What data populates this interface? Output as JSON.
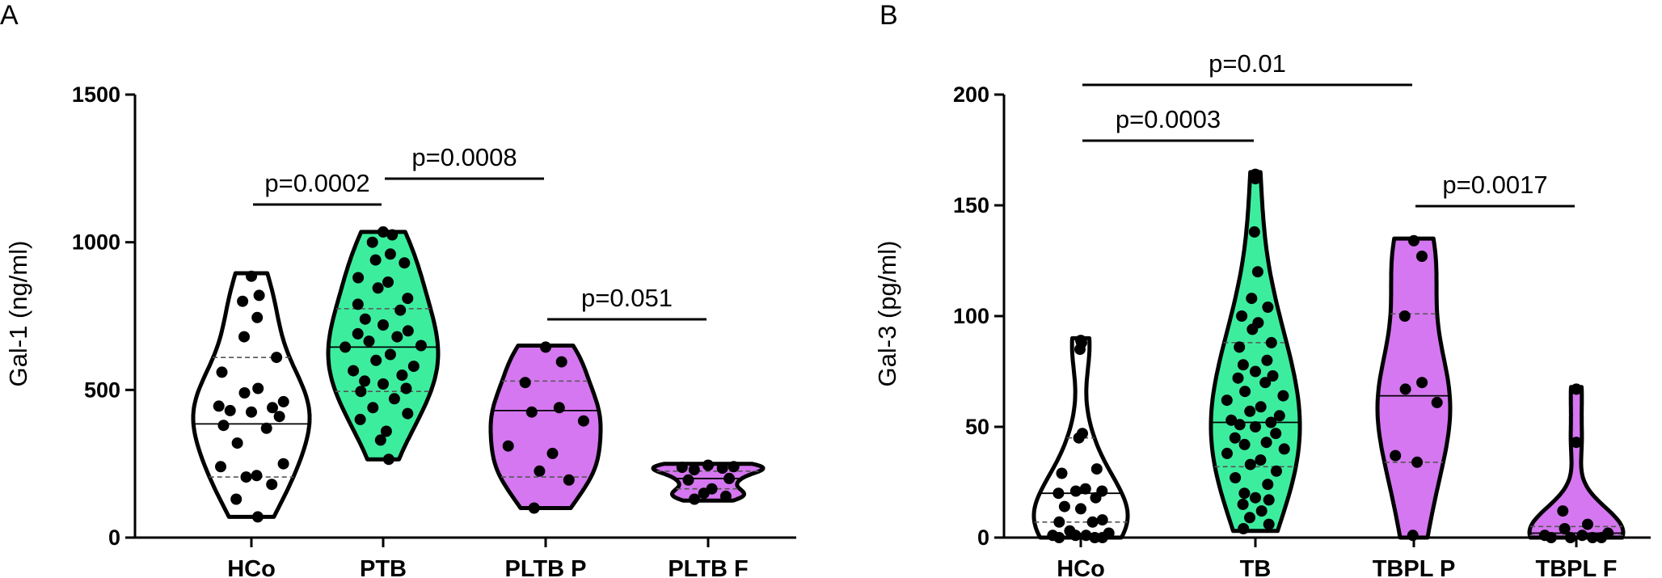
{
  "chart_data": [
    {
      "type": "violin",
      "panel_label": "A",
      "ylabel": "Gal-1 (ng/ml)",
      "ylim": [
        0,
        1500
      ],
      "yticks": [
        0,
        500,
        1000,
        1500
      ],
      "categories": [
        "HCo",
        "PTB",
        "PLTB P",
        "PLTB F"
      ],
      "series": [
        {
          "category": "HCo",
          "color": "#ffffff",
          "min": 70,
          "q1": 205,
          "median": 385,
          "q3": 610,
          "max": 895,
          "points": [
            885,
            820,
            800,
            745,
            680,
            610,
            560,
            505,
            490,
            460,
            445,
            440,
            430,
            425,
            410,
            380,
            370,
            320,
            250,
            240,
            210,
            205,
            180,
            130,
            70
          ]
        },
        {
          "category": "PTB",
          "color": "#3ded9e",
          "min": 265,
          "q1": 495,
          "median": 645,
          "q3": 775,
          "max": 1035,
          "points": [
            1035,
            1025,
            1000,
            960,
            940,
            930,
            880,
            865,
            845,
            810,
            790,
            770,
            740,
            720,
            700,
            690,
            680,
            665,
            650,
            645,
            620,
            600,
            580,
            565,
            550,
            530,
            520,
            505,
            495,
            470,
            440,
            420,
            400,
            360,
            330,
            265
          ]
        },
        {
          "category": "PLTB P",
          "color": "#d577f0",
          "min": 100,
          "q1": 205,
          "median": 430,
          "q3": 530,
          "max": 650,
          "points": [
            645,
            595,
            525,
            440,
            425,
            395,
            310,
            285,
            225,
            195,
            100
          ]
        },
        {
          "category": "PLTB F",
          "color": "#d577f0",
          "min": 125,
          "q1": 165,
          "median": 200,
          "q3": 225,
          "max": 250,
          "points": [
            245,
            240,
            238,
            235,
            230,
            200,
            195,
            165,
            150,
            140,
            130
          ]
        }
      ],
      "comparisons": [
        {
          "from": "HCo",
          "to": "PTB",
          "label": "p=0.0002"
        },
        {
          "from": "PTB",
          "to": "PLTB P",
          "label": "p=0.0008"
        },
        {
          "from": "PLTB P",
          "to": "PLTB F",
          "label": "p=0.051"
        }
      ]
    },
    {
      "type": "violin",
      "panel_label": "B",
      "ylabel": "Gal-3 (pg/ml)",
      "ylim": [
        0,
        200
      ],
      "yticks": [
        0,
        50,
        100,
        150,
        200
      ],
      "categories": [
        "HCo",
        "TB",
        "TBPL P",
        "TBPL F"
      ],
      "series": [
        {
          "category": "HCo",
          "color": "#ffffff",
          "min": 0,
          "q1": 7,
          "median": 20,
          "q3": 45,
          "max": 90,
          "points": [
            89,
            88,
            85,
            47,
            45,
            31,
            29,
            22,
            21,
            21,
            20,
            18,
            14,
            13,
            8,
            7,
            7,
            3,
            2,
            1,
            1,
            1,
            0,
            0,
            0
          ]
        },
        {
          "category": "TB",
          "color": "#3ded9e",
          "min": 3,
          "q1": 32,
          "median": 52,
          "q3": 88,
          "max": 165,
          "points": [
            164,
            162,
            138,
            120,
            108,
            104,
            100,
            97,
            94,
            88,
            86,
            80,
            78,
            75,
            73,
            72,
            70,
            66,
            64,
            62,
            59,
            57,
            55,
            53,
            52,
            51,
            50,
            47,
            45,
            43,
            42,
            40,
            38,
            35,
            33,
            30,
            27,
            24,
            20,
            18,
            17,
            15,
            12,
            9,
            6,
            4
          ]
        },
        {
          "category": "TBPL P",
          "color": "#d577f0",
          "min": 0,
          "q1": 34,
          "median": 64,
          "q3": 101,
          "max": 135,
          "points": [
            134,
            127,
            100,
            70,
            67,
            61,
            37,
            34,
            1
          ]
        },
        {
          "category": "TBPL F",
          "color": "#d577f0",
          "min": 0,
          "q1": 1,
          "median": 2,
          "q3": 5,
          "max": 68,
          "points": [
            67,
            43,
            12,
            6,
            4,
            2,
            1,
            1,
            0,
            0,
            0,
            0
          ]
        }
      ],
      "comparisons": [
        {
          "from": "HCo",
          "to": "TBPL P",
          "label": "p=0.01"
        },
        {
          "from": "HCo",
          "to": "TB",
          "label": "p=0.0003"
        },
        {
          "from": "TBPL P",
          "to": "TBPL F",
          "label": "p=0.0017"
        }
      ]
    }
  ]
}
